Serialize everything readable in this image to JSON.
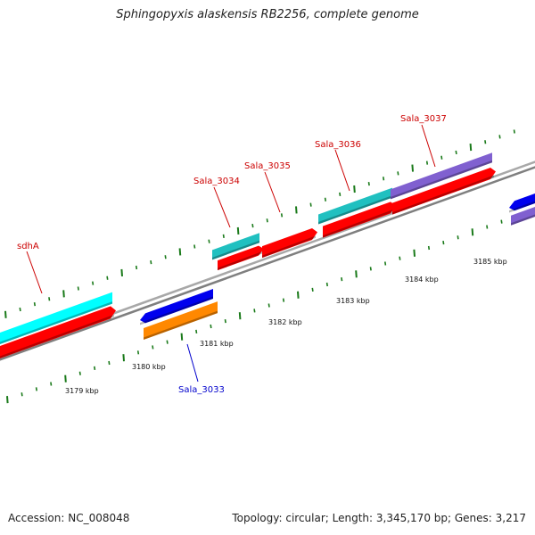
{
  "title": "Sphingopyxis alaskensis RB2256, complete genome",
  "footer": {
    "accession": "Accession: NC_008048",
    "summary": "Topology: circular; Length: 3,345,170 bp; Genes: 3,217"
  },
  "colors": {
    "backbone": "#7f7f7f",
    "ticks": "#1a7a1a",
    "label_forward": "#cc0000",
    "label_reverse": "#0000cc"
  },
  "ruler_labels": [
    "3179 kbp",
    "3180 kbp",
    "3181 kbp",
    "3182 kbp",
    "3183 kbp",
    "3184 kbp",
    "3185 kbp"
  ],
  "gene_labels": [
    {
      "text": "sdhA",
      "strand": "forward"
    },
    {
      "text": "Sala_3034",
      "strand": "forward"
    },
    {
      "text": "Sala_3035",
      "strand": "forward"
    },
    {
      "text": "Sala_3036",
      "strand": "forward"
    },
    {
      "text": "Sala_3037",
      "strand": "forward"
    },
    {
      "text": "Sala_3033",
      "strand": "reverse"
    }
  ],
  "feature_colors": {
    "cds": "#ff0000",
    "gene_cyan": "#00ffff",
    "gene_teal": "#20c0c0",
    "gene_purple": "#8060d0",
    "reverse_blue": "#0000ee",
    "reverse_orange": "#ff8800"
  }
}
